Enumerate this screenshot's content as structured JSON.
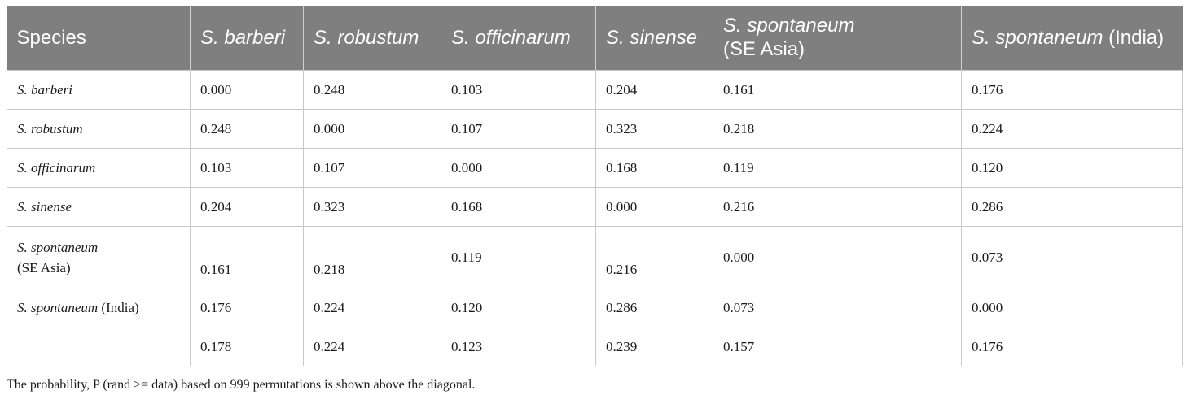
{
  "table": {
    "columns": [
      {
        "label": "Species",
        "italic": "",
        "plain": "Species"
      },
      {
        "label": "S. barberi",
        "italic": "S. barberi",
        "plain": ""
      },
      {
        "label": "S. robustum",
        "italic": "S. robustum",
        "plain": ""
      },
      {
        "label": "S. officinarum",
        "italic": "S. officinarum",
        "plain": ""
      },
      {
        "label": "S. sinense",
        "italic": "S. sinense",
        "plain": ""
      },
      {
        "label": "S. spontaneum (SE Asia)",
        "italic": "S. spontaneum",
        "plain": "(SE Asia)"
      },
      {
        "label": "S. spontaneum (India)",
        "italic": "S. spontaneum",
        "plain": "(India)"
      }
    ],
    "rows": [
      {
        "italic": "S. barberi",
        "plain": "",
        "values": [
          "0.000",
          "0.248",
          "0.103",
          "0.204",
          "0.161",
          "0.176"
        ]
      },
      {
        "italic": "S. robustum",
        "plain": "",
        "values": [
          "0.248",
          "0.000",
          "0.107",
          "0.323",
          "0.218",
          "0.224"
        ]
      },
      {
        "italic": "S. officinarum",
        "plain": "",
        "values": [
          "0.103",
          "0.107",
          "0.000",
          "0.168",
          "0.119",
          "0.120"
        ]
      },
      {
        "italic": "S. sinense",
        "plain": "",
        "values": [
          "0.204",
          "0.323",
          "0.168",
          "0.000",
          "0.216",
          "0.286"
        ]
      },
      {
        "italic": "S. spontaneum",
        "plain": "(SE Asia)",
        "values": [
          "0.161",
          "0.218",
          "0.119",
          "0.216",
          "0.000",
          "0.073"
        ]
      },
      {
        "italic": "S. spontaneum",
        "plain": "(India)",
        "values": [
          "0.176",
          "0.224",
          "0.120",
          "0.286",
          "0.073",
          "0.000"
        ]
      },
      {
        "italic": "",
        "plain": "",
        "values": [
          "0.178",
          "0.224",
          "0.123",
          "0.239",
          "0.157",
          "0.176"
        ]
      }
    ]
  },
  "footnote": "The probability, P (rand >= data) based on 999 permutations is shown above the diagonal."
}
